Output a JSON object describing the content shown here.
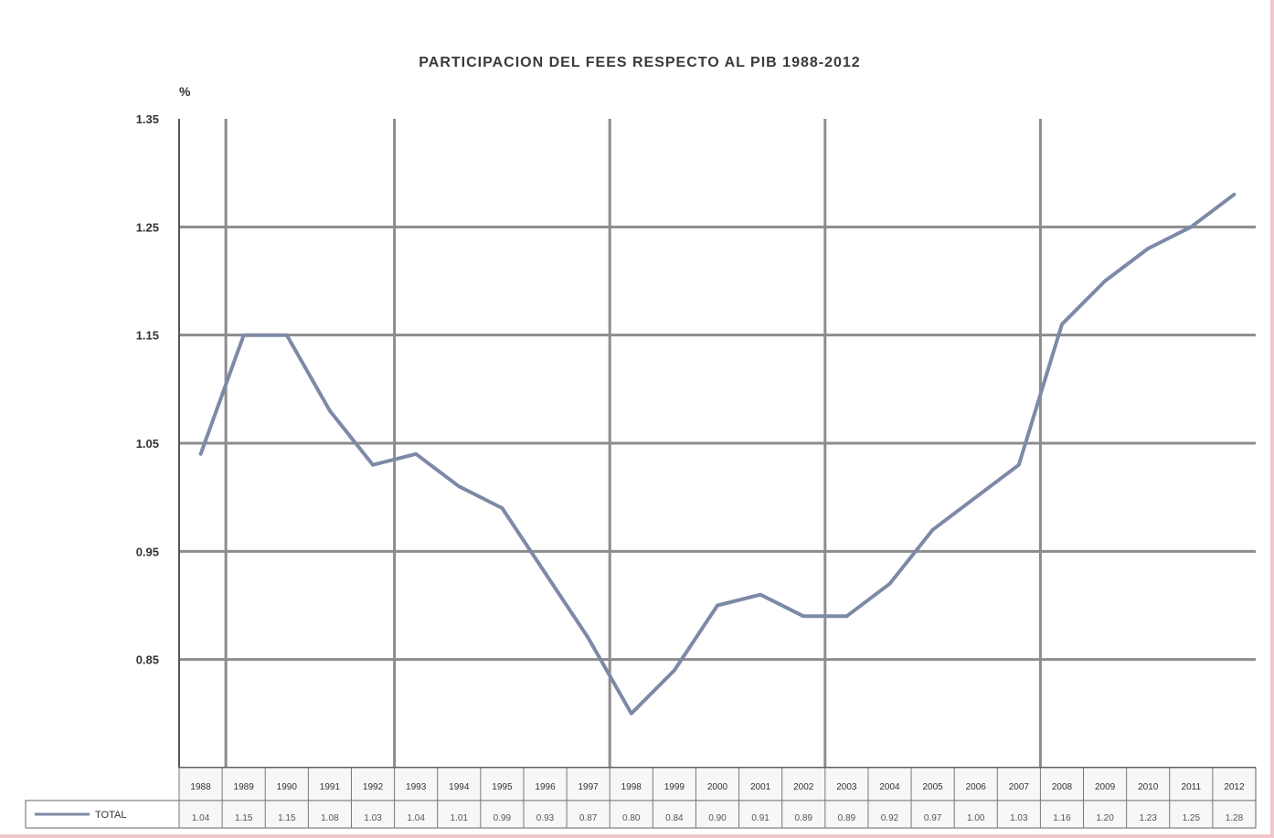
{
  "chart_data": {
    "type": "line",
    "title": "PARTICIPACION DEL FEES RESPECTO AL PIB 1988-2012",
    "ylabel": "%",
    "xlabel": "",
    "ylim": [
      0.75,
      1.35
    ],
    "yticks": [
      "1.35",
      "1.25",
      "1.15",
      "1.05",
      "0.95",
      "0.85"
    ],
    "ytick_values": [
      1.35,
      1.25,
      1.15,
      1.05,
      0.95,
      0.85
    ],
    "grid": true,
    "legend": "bottom-left",
    "series": [
      {
        "name": "TOTAL",
        "color": "#7d8aa6",
        "values": [
          1.04,
          1.15,
          1.15,
          1.08,
          1.03,
          1.04,
          1.01,
          0.99,
          0.93,
          0.87,
          0.8,
          0.84,
          0.9,
          0.91,
          0.89,
          0.89,
          0.92,
          0.97,
          1.0,
          1.03,
          1.16,
          1.2,
          1.23,
          1.25,
          1.28
        ]
      }
    ],
    "categories": [
      "1988",
      "1989",
      "1990",
      "1991",
      "1992",
      "1993",
      "1994",
      "1995",
      "1996",
      "1997",
      "1998",
      "1999",
      "2000",
      "2001",
      "2002",
      "2003",
      "2004",
      "2005",
      "2006",
      "2007",
      "2008",
      "2009",
      "2010",
      "2011",
      "2012"
    ]
  }
}
